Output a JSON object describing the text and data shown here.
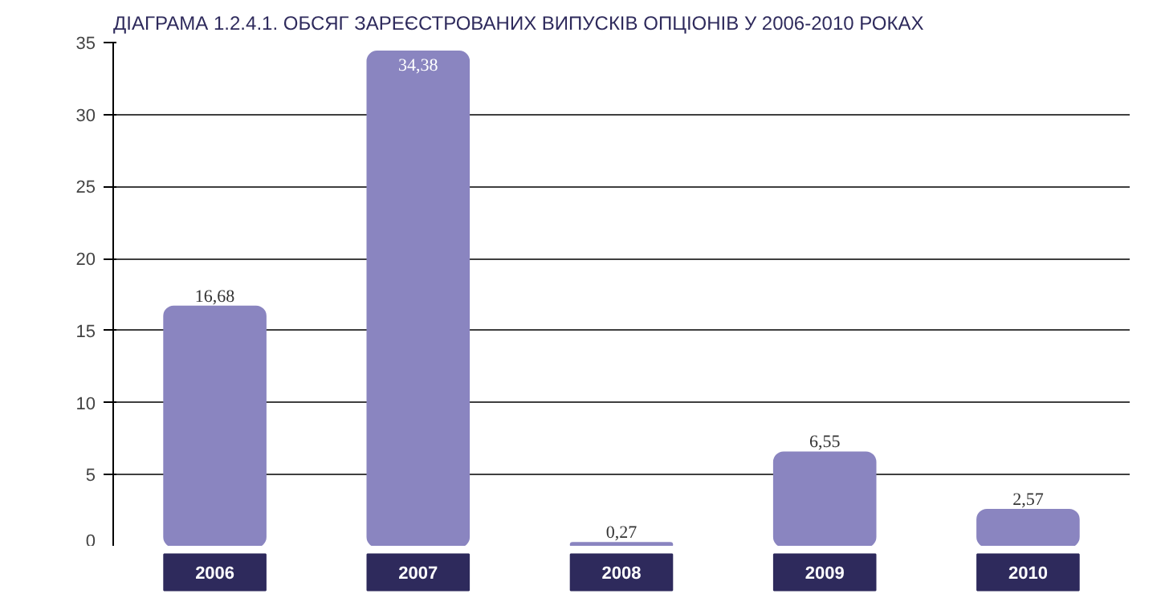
{
  "chart_data": {
    "type": "bar",
    "title": "ДІАГРАМА 1.2.4.1. ОБСЯГ ЗАРЕЄСТРОВАНИХ ВИПУСКІВ ОПЦІОНІВ У 2006-2010 РОКАХ",
    "categories": [
      "2006",
      "2007",
      "2008",
      "2009",
      "2010"
    ],
    "values": [
      16.68,
      34.38,
      0.27,
      6.55,
      2.57
    ],
    "value_labels": [
      "16,68",
      "34,38",
      "0,27",
      "6,55",
      "2,57"
    ],
    "color": "#8a85c0",
    "ylim": [
      0,
      35
    ],
    "yticks": [
      0,
      5,
      10,
      15,
      20,
      25,
      30,
      35
    ],
    "grid": "y"
  }
}
